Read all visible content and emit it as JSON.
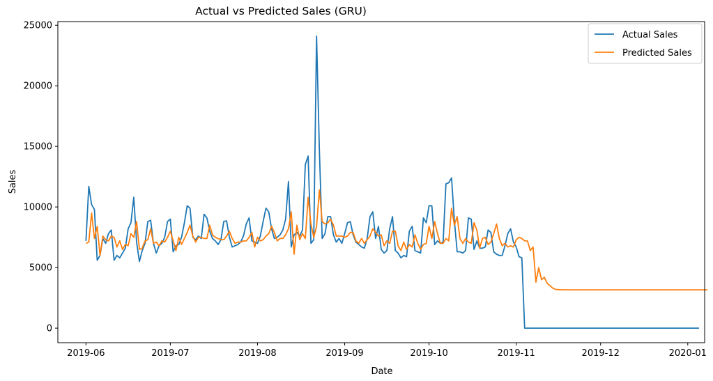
{
  "chart_data": {
    "type": "line",
    "title": "Actual vs Predicted Sales (GRU)",
    "xlabel": "Date",
    "ylabel": "Sales",
    "x_start": "2019-06-01",
    "x_end": "2019-12-29",
    "x_ticks": [
      "2019-06",
      "2019-07",
      "2019-08",
      "2019-09",
      "2019-10",
      "2019-11",
      "2019-12",
      "2020-01"
    ],
    "x_range": [
      "2019-05-22",
      "2020-01-07"
    ],
    "y_ticks": [
      0,
      5000,
      10000,
      15000,
      20000,
      25000
    ],
    "ylim": [
      -1200,
      25300
    ],
    "legend_position": "top-right",
    "series": [
      {
        "name": "Actual Sales",
        "color": "#1f77b4",
        "values": [
          7200,
          11700,
          10200,
          9800,
          5600,
          6000,
          7400,
          7000,
          7800,
          8100,
          5600,
          6000,
          5800,
          6200,
          6600,
          8200,
          8700,
          10800,
          7100,
          5500,
          6400,
          7000,
          8800,
          8900,
          7000,
          6200,
          6800,
          7000,
          7500,
          8800,
          9000,
          6300,
          6800,
          6900,
          7500,
          8700,
          10100,
          9900,
          7500,
          7300,
          7600,
          7400,
          9400,
          9100,
          8000,
          7400,
          7200,
          6900,
          7300,
          8800,
          8850,
          7500,
          6700,
          6800,
          6900,
          7100,
          7600,
          8600,
          9100,
          7200,
          7100,
          7000,
          7600,
          8800,
          9900,
          9600,
          8200,
          7400,
          7500,
          7700,
          8100,
          9000,
          12100,
          6700,
          7700,
          7900,
          7600,
          8100,
          13500,
          14200,
          7000,
          7300,
          24100,
          14700,
          7400,
          7800,
          9200,
          9200,
          7700,
          7100,
          7400,
          7000,
          7800,
          8700,
          8800,
          7700,
          7100,
          6900,
          6700,
          6600,
          7400,
          9200,
          9600,
          7400,
          8400,
          6500,
          6200,
          6400,
          8200,
          9200,
          6400,
          6200,
          5800,
          6000,
          5900,
          8000,
          8400,
          6400,
          6300,
          6200,
          9100,
          8700,
          10100,
          10100,
          6900,
          7200,
          7000,
          7100,
          11900,
          12000,
          12400,
          8900,
          6300,
          6300,
          6200,
          6400,
          9100,
          9000,
          6500,
          7200,
          6600,
          6600,
          6700,
          8100,
          7900,
          6300,
          6100,
          6000,
          6000,
          6800,
          7800,
          8200,
          7100,
          6700,
          5900,
          5800,
          0,
          0,
          0,
          0,
          0,
          0,
          0,
          0,
          0,
          0,
          0,
          0,
          0,
          0,
          0,
          0,
          0,
          0,
          0,
          0,
          0,
          0,
          0,
          0,
          0,
          0,
          0,
          0,
          0,
          0,
          0,
          0,
          0,
          0,
          0,
          0,
          0,
          0,
          0,
          0,
          0,
          0,
          0,
          0,
          0,
          0,
          0,
          0,
          0,
          0,
          0,
          0,
          0,
          0,
          0,
          0,
          0,
          0,
          0,
          0,
          0,
          0,
          0
        ]
      },
      {
        "name": "Predicted Sales",
        "color": "#ff7f0e",
        "values": [
          7000,
          7100,
          9500,
          7400,
          8400,
          6000,
          7600,
          7300,
          7200,
          7600,
          7500,
          6700,
          7200,
          6500,
          6900,
          6800,
          7800,
          7500,
          8800,
          6500,
          6600,
          7200,
          7300,
          8200,
          7000,
          7100,
          6800,
          7200,
          7100,
          7500,
          8000,
          7200,
          6400,
          7500,
          6900,
          7400,
          7900,
          8500,
          7600,
          7100,
          7500,
          7500,
          7400,
          7400,
          8500,
          7700,
          7500,
          7400,
          7300,
          7300,
          7600,
          8000,
          7400,
          7000,
          7100,
          7100,
          7200,
          7200,
          7500,
          7900,
          6700,
          7500,
          7200,
          7300,
          7600,
          7800,
          8400,
          7900,
          7200,
          7400,
          7400,
          7700,
          8200,
          9600,
          6100,
          8500,
          7300,
          7800,
          7400,
          10800,
          8600,
          7500,
          8400,
          11400,
          8800,
          8600,
          8700,
          9000,
          8500,
          7600,
          7600,
          7600,
          7500,
          7600,
          7900,
          7900,
          7200,
          7000,
          7400,
          7000,
          7300,
          7600,
          8200,
          7900,
          7600,
          7700,
          6800,
          7200,
          7000,
          8000,
          8000,
          6800,
          6400,
          7100,
          6500,
          6900,
          6700,
          7700,
          7000,
          6500,
          6900,
          7000,
          8400,
          7400,
          8800,
          7800,
          7000,
          7000,
          7400,
          7200,
          9900,
          8500,
          9200,
          7400,
          7000,
          7400,
          7100,
          7000,
          8700,
          8100,
          6600,
          7400,
          7500,
          6900,
          7100,
          7800,
          8600,
          7400,
          6800,
          7000,
          6700,
          6800,
          6700,
          7300,
          7500,
          7400,
          7200,
          7200,
          6400,
          6700,
          3800,
          5000,
          4000,
          4200,
          3700,
          3500,
          3300,
          3200,
          3180,
          3170,
          3160,
          3160,
          3160,
          3160,
          3160,
          3160,
          3160,
          3160,
          3160,
          3160,
          3160,
          3160,
          3160,
          3160,
          3160,
          3160,
          3160,
          3160,
          3160,
          3160,
          3160,
          3160,
          3160,
          3160,
          3160,
          3160,
          3160,
          3160,
          3160,
          3160,
          3160,
          3160,
          3160,
          3160,
          3160,
          3160,
          3160,
          3160,
          3160,
          3160,
          3160,
          3160,
          3160,
          3160,
          3160,
          3160,
          3160,
          3160,
          3160,
          3160,
          3160,
          3160
        ]
      }
    ]
  }
}
